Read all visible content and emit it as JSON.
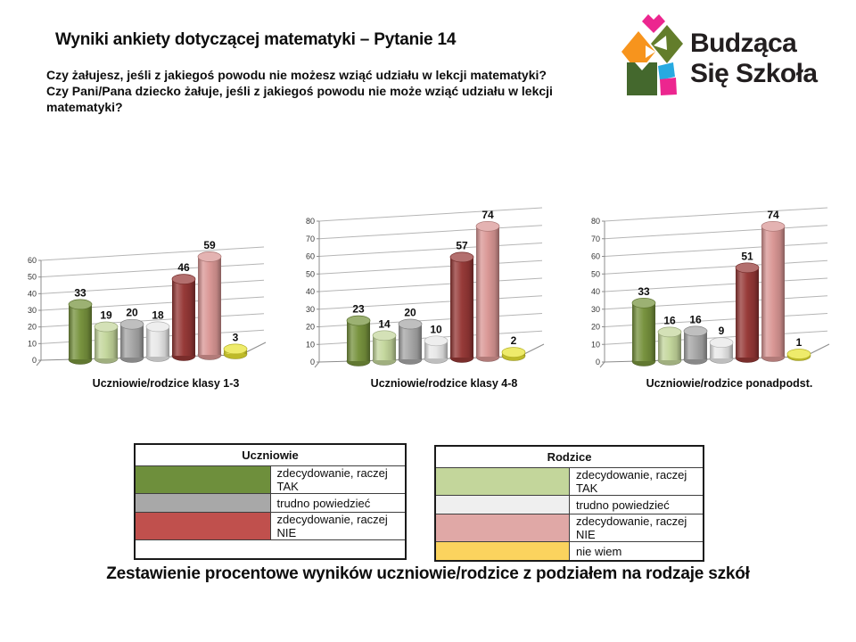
{
  "slide": {
    "title": "Wyniki ankiety dotyczącej matematyki – Pytanie 14",
    "question": "Czy żałujesz, jeśli z jakiegoś powodu nie możesz wziąć udziału w lekcji matematyki?\nCzy Pani/Pana dziecko żałuje, jeśli z jakiegoś powodu nie może wziąć udziału w lekcji matematyki?",
    "footer": "Zestawienie procentowe wyników uczniowie/rodzice z podziałem na rodzaje szkół"
  },
  "logo": {
    "text_line1": "Budząca",
    "text_line2": "Się Szkoła",
    "colors": {
      "orange": "#F7941D",
      "magenta": "#EC268F",
      "olive": "#637D2B",
      "forest": "#44682D",
      "blue": "#27AAE1",
      "text": "#221E1F"
    }
  },
  "series_legend": [
    {
      "group": "Uczniowie",
      "label": "zdecydowanie, raczej TAK",
      "color": "#76923C"
    },
    {
      "group": "Rodzice",
      "label": "zdecydowanie, raczej TAK",
      "color": "#C3D69B"
    },
    {
      "group": "Uczniowie",
      "label": "trudno powiedzieć",
      "color": "#A6A6A6"
    },
    {
      "group": "Rodzice",
      "label": "trudno powiedzieć",
      "color": "#E8E8E8"
    },
    {
      "group": "Uczniowie",
      "label": "zdecydowanie, raczej NIE",
      "color": "#953735"
    },
    {
      "group": "Rodzice",
      "label": "zdecydowanie, raczej NIE",
      "color": "#D99694"
    },
    {
      "group": "Rodzice",
      "label": "nie wiem",
      "color": "#E8E332"
    }
  ],
  "chart_data": [
    {
      "type": "bar",
      "style": "3d-cylinder",
      "title": "Uczniowie/rodzice klasy 1-3",
      "categories": [
        "Uczniowie: zdecydowanie, raczej TAK",
        "Rodzice: zdecydowanie, raczej TAK",
        "Uczniowie: trudno powiedzieć",
        "Rodzice: trudno powiedzieć",
        "Uczniowie: zdecydowanie, raczej NIE",
        "Rodzice: zdecydowanie, raczej NIE",
        "Rodzice: nie wiem"
      ],
      "values": [
        33,
        19,
        20,
        18,
        46,
        59,
        3
      ],
      "ylim": [
        0,
        60
      ],
      "yticks": [
        0,
        10,
        20,
        30,
        40,
        50,
        60
      ],
      "grid": true,
      "legend_position": "none"
    },
    {
      "type": "bar",
      "style": "3d-cylinder",
      "title": "Uczniowie/rodzice klasy 4-8",
      "categories": [
        "Uczniowie: zdecydowanie, raczej TAK",
        "Rodzice: zdecydowanie, raczej TAK",
        "Uczniowie: trudno powiedzieć",
        "Rodzice: trudno powiedzieć",
        "Uczniowie: zdecydowanie, raczej NIE",
        "Rodzice: zdecydowanie, raczej NIE",
        "Rodzice: nie wiem"
      ],
      "values": [
        23,
        14,
        20,
        10,
        57,
        74,
        2
      ],
      "ylim": [
        0,
        80
      ],
      "yticks": [
        0,
        10,
        20,
        30,
        40,
        50,
        60,
        70,
        80
      ],
      "grid": true,
      "legend_position": "none"
    },
    {
      "type": "bar",
      "style": "3d-cylinder",
      "title": "Uczniowie/rodzice ponadpodst.",
      "categories": [
        "Uczniowie: zdecydowanie, raczej TAK",
        "Rodzice: zdecydowanie, raczej TAK",
        "Uczniowie: trudno powiedzieć",
        "Rodzice: trudno powiedzieć",
        "Uczniowie: zdecydowanie, raczej NIE",
        "Rodzice: zdecydowanie, raczej NIE",
        "Rodzice: nie wiem"
      ],
      "values": [
        33,
        16,
        16,
        9,
        51,
        74,
        1
      ],
      "ylim": [
        0,
        80
      ],
      "yticks": [
        0,
        10,
        20,
        30,
        40,
        50,
        60,
        70,
        80
      ],
      "grid": true,
      "legend_position": "none"
    }
  ],
  "legend_tables": [
    {
      "title": "Uczniowie",
      "rows": [
        {
          "color": "#6E8F3C",
          "label": "zdecydowanie, raczej TAK"
        },
        {
          "color": "#A8A8A8",
          "label": "trudno powiedzieć"
        },
        {
          "color": "#C0504D",
          "label": "zdecydowanie, raczej NIE"
        },
        {
          "color": "",
          "label": ""
        }
      ]
    },
    {
      "title": "Rodzice",
      "rows": [
        {
          "color": "#C3D69B",
          "label": "zdecydowanie, raczej TAK"
        },
        {
          "color": "#EFEFEF",
          "label": "trudno powiedzieć"
        },
        {
          "color": "#E0A8A6",
          "label": "zdecydowanie, raczej NIE"
        },
        {
          "color": "#FBD35E",
          "label": "nie wiem"
        }
      ]
    }
  ]
}
